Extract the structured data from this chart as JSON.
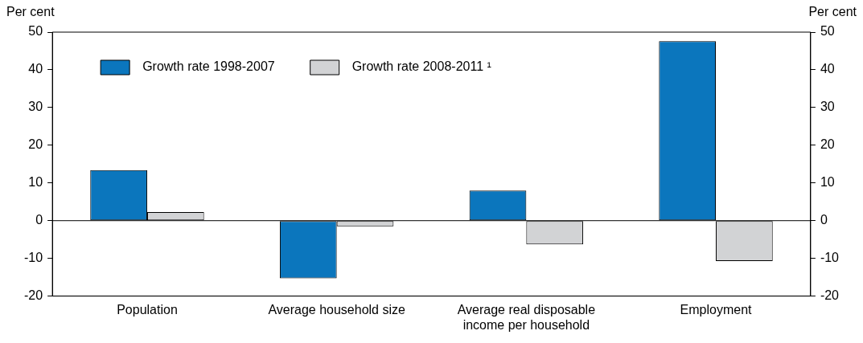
{
  "chart_data": {
    "type": "bar",
    "ylabel": "Per cent",
    "y2label": "Per cent",
    "categories": [
      "Population",
      "Average household size",
      "Average real disposable income per household",
      "Employment"
    ],
    "series": [
      {
        "name": "Growth rate 1998-2007",
        "color": "#0b76bd",
        "values": [
          13.4,
          -15.3,
          8.0,
          47.6
        ]
      },
      {
        "name": "Growth rate 2008-2011 ¹",
        "color": "#d2d3d5",
        "values": [
          2.3,
          -1.5,
          -6.3,
          -10.7
        ]
      }
    ],
    "ylim": [
      -20,
      50
    ],
    "yticks": [
      -20,
      -10,
      0,
      10,
      20,
      30,
      40,
      50
    ],
    "y2lim": [
      -20,
      50
    ],
    "y2ticks": [
      -20,
      -10,
      0,
      10,
      20,
      30,
      40,
      50
    ],
    "ref_lines": [
      {
        "axis": "y",
        "value": 0,
        "color": "#000000"
      }
    ],
    "grid": false,
    "legend": "top left"
  }
}
